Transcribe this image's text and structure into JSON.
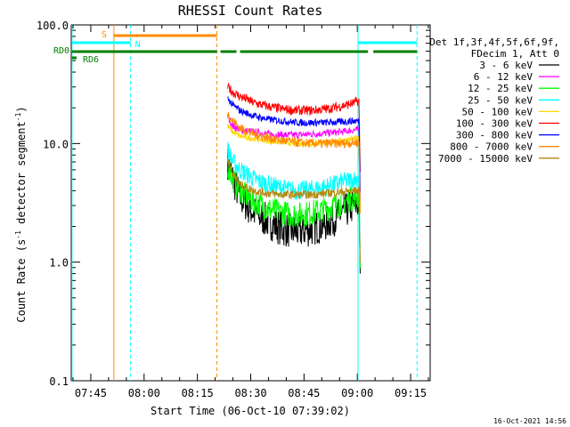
{
  "chart_data": {
    "type": "line",
    "title": "RHESSI Count Rates",
    "xlabel": "Start Time (06-Oct-10 07:39:02)",
    "ylabel_main": "Count Rate (s",
    "ylabel_sup1": "-1",
    "ylabel_mid": " detector segment",
    "ylabel_sup2": "-1",
    "ylabel_end": ")",
    "yscale": "log",
    "ylim": [
      0.1,
      100.0
    ],
    "xlim_minutes": [
      -5.5,
      95.5
    ],
    "x_ticks": [
      {
        "min": 0,
        "label": "07:45"
      },
      {
        "min": 15,
        "label": "08:00"
      },
      {
        "min": 30,
        "label": "08:15"
      },
      {
        "min": 45,
        "label": "08:30"
      },
      {
        "min": 60,
        "label": "08:45"
      },
      {
        "min": 75,
        "label": "09:00"
      },
      {
        "min": 90,
        "label": "09:15"
      }
    ],
    "y_ticks": [
      {
        "value": 100.0,
        "label": "100.0"
      },
      {
        "value": 10.0,
        "label": "10.0"
      },
      {
        "value": 1.0,
        "label": "1.0"
      },
      {
        "value": 0.1,
        "label": "0.1"
      }
    ],
    "legend_header": [
      "Det 1f,3f,4f,5f,6f,9f,",
      "FDecim 1, Att 0"
    ],
    "series": [
      {
        "name": "3 - 6 keV",
        "color": "#000000",
        "x": [
          38.5,
          40,
          42,
          46,
          50,
          54,
          58,
          62,
          66,
          70,
          74,
          75.5
        ],
        "y": [
          7.0,
          5.0,
          3.5,
          2.6,
          2.2,
          1.9,
          1.8,
          1.9,
          2.1,
          2.5,
          3.0,
          3.2
        ]
      },
      {
        "name": "6 - 12 keV",
        "color": "#ff00ff",
        "x": [
          38.5,
          40,
          42,
          46,
          50,
          54,
          58,
          62,
          66,
          70,
          74,
          75.5
        ],
        "y": [
          17.0,
          14.0,
          13.0,
          12.5,
          12.0,
          11.8,
          11.8,
          12.0,
          12.2,
          12.5,
          13.0,
          13.0
        ]
      },
      {
        "name": "12 - 25 keV",
        "color": "#00ff00",
        "x": [
          38.5,
          40,
          42,
          46,
          50,
          54,
          58,
          62,
          66,
          70,
          74,
          75.5
        ],
        "y": [
          6.5,
          5.0,
          4.0,
          3.2,
          2.8,
          2.6,
          2.5,
          2.6,
          2.8,
          3.1,
          3.5,
          3.6
        ]
      },
      {
        "name": "25 - 50 keV",
        "color": "#00ffff",
        "x": [
          38.5,
          40,
          42,
          46,
          50,
          54,
          58,
          62,
          66,
          70,
          74,
          75.5
        ],
        "y": [
          9.0,
          7.0,
          6.0,
          5.0,
          4.5,
          4.2,
          4.0,
          4.1,
          4.3,
          4.7,
          5.0,
          5.2
        ]
      },
      {
        "name": "50 - 100 keV",
        "color": "#ffd700",
        "x": [
          38.5,
          40,
          42,
          46,
          50,
          54,
          58,
          62,
          66,
          70,
          74,
          75.5
        ],
        "y": [
          14.0,
          12.5,
          11.5,
          11.0,
          10.5,
          10.2,
          10.0,
          10.0,
          10.2,
          10.5,
          11.0,
          11.0
        ]
      },
      {
        "name": "100 - 300 keV",
        "color": "#ff0000",
        "x": [
          38.5,
          40,
          42,
          46,
          50,
          54,
          58,
          62,
          66,
          70,
          74,
          75.5
        ],
        "y": [
          30.0,
          27.0,
          25.0,
          22.0,
          20.5,
          19.5,
          19.0,
          19.0,
          19.5,
          20.5,
          22.0,
          23.0
        ]
      },
      {
        "name": "300 - 800 keV",
        "color": "#0000ff",
        "x": [
          38.5,
          40,
          42,
          46,
          50,
          54,
          58,
          62,
          66,
          70,
          74,
          75.5
        ],
        "y": [
          24.0,
          21.0,
          19.0,
          17.0,
          16.0,
          15.5,
          15.0,
          15.0,
          15.0,
          15.2,
          15.5,
          15.5
        ]
      },
      {
        "name": "800 - 7000 keV",
        "color": "#ff8c00",
        "x": [
          38.5,
          40,
          42,
          46,
          50,
          54,
          58,
          62,
          66,
          70,
          74,
          75.5
        ],
        "y": [
          18.0,
          15.5,
          13.5,
          12.0,
          11.2,
          10.6,
          10.2,
          10.0,
          10.0,
          10.0,
          10.2,
          10.2
        ]
      },
      {
        "name": "7000 - 15000 keV",
        "color": "#b8860b",
        "x": [
          38.5,
          40,
          42,
          46,
          50,
          54,
          58,
          62,
          66,
          70,
          74,
          75.5
        ],
        "y": [
          7.5,
          5.5,
          4.5,
          4.0,
          3.8,
          3.7,
          3.7,
          3.7,
          3.8,
          3.9,
          4.0,
          4.0
        ]
      }
    ],
    "vertical_markers": [
      {
        "min": -5.3,
        "color": "#00ffff",
        "style": "solid"
      },
      {
        "min": 6.5,
        "color": "#ff8c00",
        "style": "solid"
      },
      {
        "min": 11.2,
        "color": "#00ffff",
        "style": "dashed"
      },
      {
        "min": 35.5,
        "color": "#ff8c00",
        "style": "dashed"
      },
      {
        "min": 75.2,
        "color": "#00ffff",
        "style": "solid"
      },
      {
        "min": 91.8,
        "color": "#00ffff",
        "style": "dashed"
      }
    ],
    "flag_segments": [
      {
        "label": "S",
        "color": "#ff8c00",
        "y": 75,
        "ranges": [
          [
            6.5,
            35.5
          ]
        ]
      },
      {
        "label": "N",
        "color": "#00ffff",
        "y": 65,
        "ranges": [
          [
            -5.3,
            11.2
          ],
          [
            75.2,
            91.8
          ]
        ]
      },
      {
        "label": "RD0",
        "color": "#008000",
        "y": 55,
        "ranges": [
          [
            -5.3,
            35.5
          ],
          [
            36.5,
            41.0
          ],
          [
            42.0,
            78.0
          ],
          [
            79.5,
            91.8
          ]
        ]
      },
      {
        "label": "RD6",
        "color": "#008000",
        "y": 48,
        "ranges": [
          [
            -5.3,
            -4.0
          ]
        ]
      }
    ]
  },
  "footer": {
    "timestamp": "16-Oct-2021 14:56"
  }
}
